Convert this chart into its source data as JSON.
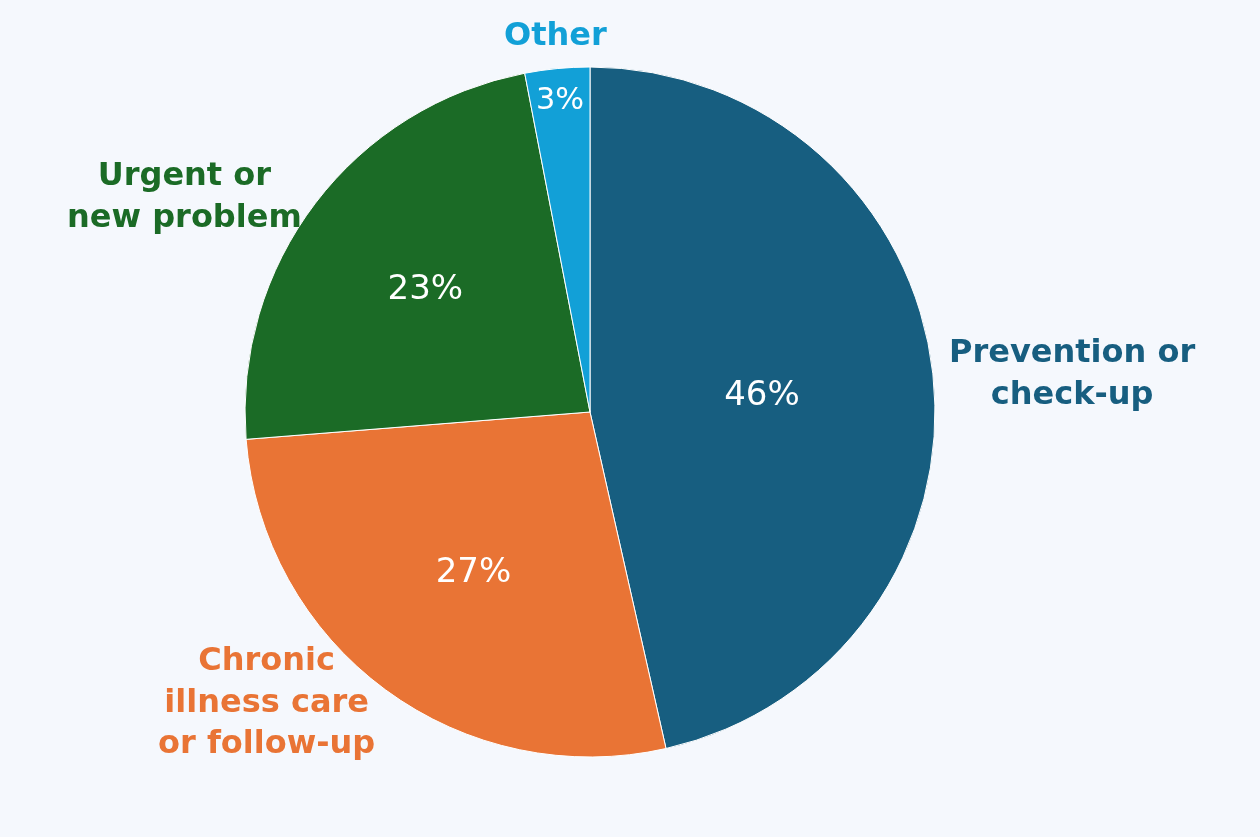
{
  "chart_data": {
    "type": "pie",
    "categories": [
      "Prevention or check-up",
      "Chronic illness care or follow-up",
      "Urgent or new problem",
      "Other"
    ],
    "values": [
      46,
      27,
      23,
      3
    ],
    "value_labels": [
      "46%",
      "27%",
      "23%",
      "3%"
    ],
    "colors": [
      "#175e80",
      "#e97435",
      "#1b6b26",
      "#12a0d7"
    ],
    "legend": false
  }
}
